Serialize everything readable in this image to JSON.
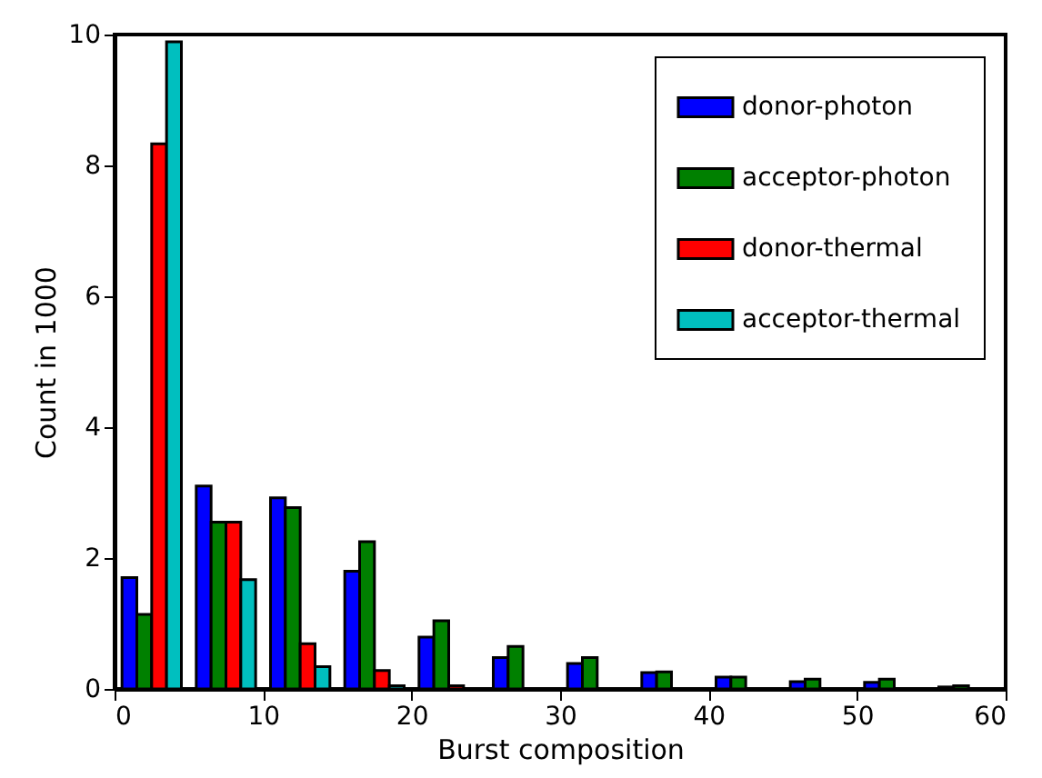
{
  "chart_data": {
    "type": "histogram",
    "xlabel": "Burst composition",
    "ylabel": "Count in 1000",
    "bins": [
      0,
      5,
      10,
      15,
      20,
      25,
      30,
      35,
      40,
      45,
      50,
      55,
      60
    ],
    "series": [
      {
        "name": "donor-photon",
        "color": "#0000ff",
        "values": [
          1.7,
          3.1,
          2.92,
          1.8,
          0.79,
          0.48,
          0.39,
          0.25,
          0.18,
          0.11,
          0.1,
          0.03
        ]
      },
      {
        "name": "acceptor-photon",
        "color": "#008000",
        "values": [
          1.14,
          2.55,
          2.77,
          2.25,
          1.04,
          0.65,
          0.48,
          0.26,
          0.18,
          0.15,
          0.15,
          0.05
        ]
      },
      {
        "name": "donor-thermal",
        "color": "#ff0000",
        "values": [
          8.33,
          2.55,
          0.69,
          0.28,
          0.05,
          null,
          null,
          null,
          null,
          null,
          null,
          null
        ]
      },
      {
        "name": "acceptor-thermal",
        "color": "#00bfbf",
        "values": [
          9.89,
          1.67,
          0.34,
          0.05,
          null,
          null,
          null,
          null,
          null,
          null,
          null,
          null
        ]
      }
    ],
    "xlim": [
      0,
      60
    ],
    "xticks": [
      0,
      10,
      20,
      30,
      40,
      50,
      60
    ],
    "ylim": [
      0,
      10
    ],
    "yticks": [
      0,
      2,
      4,
      6,
      8,
      10
    ],
    "grid": false,
    "legend": "top right"
  }
}
